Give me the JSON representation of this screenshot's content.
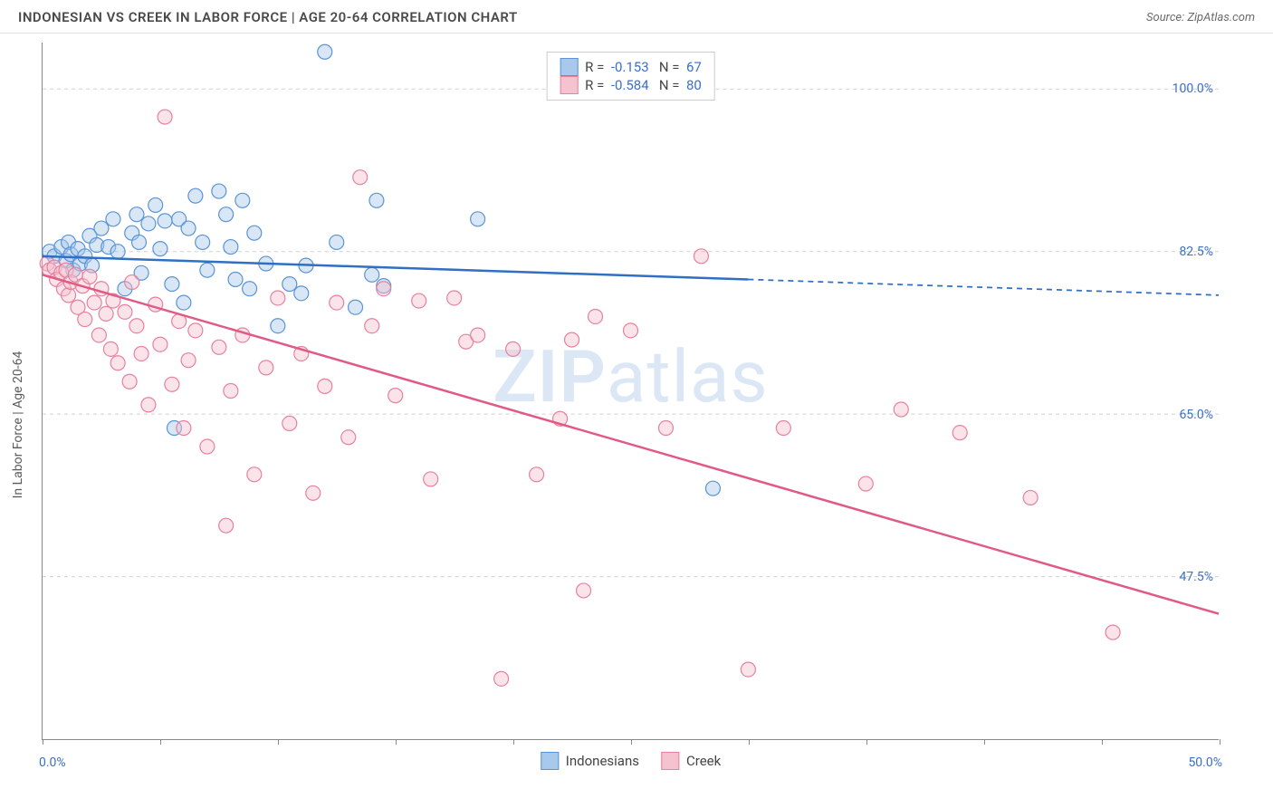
{
  "header": {
    "title": "INDONESIAN VS CREEK IN LABOR FORCE | AGE 20-64 CORRELATION CHART",
    "source_prefix": "Source: ",
    "source": "ZipAtlas.com"
  },
  "chart": {
    "type": "scatter",
    "ylabel": "In Labor Force | Age 20-64",
    "watermark": "ZIPatlas",
    "background_color": "#ffffff",
    "grid_color": "#d0d0d0",
    "axis_color": "#888888",
    "tick_label_color": "#3b6fc9",
    "xlim": [
      0,
      50
    ],
    "ylim": [
      30,
      105
    ],
    "xticks": [
      0,
      5,
      10,
      15,
      20,
      25,
      30,
      35,
      40,
      45,
      50
    ],
    "xtick_labels_shown": {
      "0": "0.0%",
      "50": "50.0%"
    },
    "yticks": [
      47.5,
      65.0,
      82.5,
      100.0
    ],
    "ytick_labels": [
      "47.5%",
      "65.0%",
      "82.5%",
      "100.0%"
    ],
    "marker_radius": 8,
    "marker_opacity": 0.45,
    "line_width": 2.5,
    "series": [
      {
        "name": "Indonesians",
        "color_fill": "#a8c8ec",
        "color_stroke": "#5a94d6",
        "line_color": "#2f6fc4",
        "R": "-0.153",
        "N": "67",
        "regression": {
          "x1": 0,
          "y1": 82.0,
          "x2_solid": 30,
          "y2_solid": 79.5,
          "x2_dash": 50,
          "y2_dash": 77.8
        },
        "points": [
          [
            0.3,
            82.5
          ],
          [
            0.5,
            82
          ],
          [
            0.8,
            83
          ],
          [
            1.0,
            81.5
          ],
          [
            1.1,
            83.5
          ],
          [
            1.2,
            82.2
          ],
          [
            1.3,
            80.5
          ],
          [
            1.5,
            82.8
          ],
          [
            1.6,
            81.2
          ],
          [
            1.8,
            82.0
          ],
          [
            2.0,
            84.2
          ],
          [
            2.1,
            81.0
          ],
          [
            2.3,
            83.2
          ],
          [
            2.5,
            85.0
          ],
          [
            2.8,
            83
          ],
          [
            3.0,
            86
          ],
          [
            3.2,
            82.5
          ],
          [
            3.5,
            78.5
          ],
          [
            3.8,
            84.5
          ],
          [
            4.0,
            86.5
          ],
          [
            4.1,
            83.5
          ],
          [
            4.2,
            80.2
          ],
          [
            4.5,
            85.5
          ],
          [
            4.8,
            87.5
          ],
          [
            5.0,
            82.8
          ],
          [
            5.2,
            85.8
          ],
          [
            5.5,
            79
          ],
          [
            5.6,
            63.5
          ],
          [
            5.8,
            86.0
          ],
          [
            6.0,
            77
          ],
          [
            6.2,
            85
          ],
          [
            6.5,
            88.5
          ],
          [
            6.8,
            83.5
          ],
          [
            7.0,
            80.5
          ],
          [
            7.5,
            89
          ],
          [
            7.8,
            86.5
          ],
          [
            8.0,
            83
          ],
          [
            8.2,
            79.5
          ],
          [
            8.5,
            88
          ],
          [
            8.8,
            78.5
          ],
          [
            9.0,
            84.5
          ],
          [
            9.5,
            81.2
          ],
          [
            10.0,
            74.5
          ],
          [
            10.5,
            79
          ],
          [
            11.0,
            78
          ],
          [
            11.2,
            81
          ],
          [
            12.0,
            104
          ],
          [
            12.5,
            83.5
          ],
          [
            13.3,
            76.5
          ],
          [
            14.0,
            80
          ],
          [
            14.2,
            88
          ],
          [
            14.5,
            78.8
          ],
          [
            18.5,
            86
          ],
          [
            28.5,
            57
          ]
        ]
      },
      {
        "name": "Creek",
        "color_fill": "#f5c2cf",
        "color_stroke": "#e8809e",
        "line_color": "#e05a85",
        "R": "-0.584",
        "N": "80",
        "regression": {
          "x1": 0,
          "y1": 80.0,
          "x2_solid": 50,
          "y2_solid": 43.5,
          "x2_dash": 50,
          "y2_dash": 43.5
        },
        "points": [
          [
            0.2,
            81.2
          ],
          [
            0.3,
            80.5
          ],
          [
            0.5,
            80.8
          ],
          [
            0.6,
            79.5
          ],
          [
            0.8,
            80.2
          ],
          [
            0.9,
            78.5
          ],
          [
            1.0,
            80.5
          ],
          [
            1.1,
            77.8
          ],
          [
            1.2,
            79.2
          ],
          [
            1.4,
            80.0
          ],
          [
            1.5,
            76.5
          ],
          [
            1.7,
            78.8
          ],
          [
            1.8,
            75.2
          ],
          [
            2.0,
            79.8
          ],
          [
            2.2,
            77.0
          ],
          [
            2.4,
            73.5
          ],
          [
            2.5,
            78.5
          ],
          [
            2.7,
            75.8
          ],
          [
            2.9,
            72.0
          ],
          [
            3.0,
            77.2
          ],
          [
            3.2,
            70.5
          ],
          [
            3.5,
            76.0
          ],
          [
            3.7,
            68.5
          ],
          [
            3.8,
            79.2
          ],
          [
            4.0,
            74.5
          ],
          [
            4.2,
            71.5
          ],
          [
            4.5,
            66.0
          ],
          [
            4.8,
            76.8
          ],
          [
            5.0,
            72.5
          ],
          [
            5.2,
            97.0
          ],
          [
            5.5,
            68.2
          ],
          [
            5.8,
            75.0
          ],
          [
            6.0,
            63.5
          ],
          [
            6.2,
            70.8
          ],
          [
            6.5,
            74.0
          ],
          [
            7.0,
            61.5
          ],
          [
            7.5,
            72.2
          ],
          [
            7.8,
            53.0
          ],
          [
            8.0,
            67.5
          ],
          [
            8.5,
            73.5
          ],
          [
            9.0,
            58.5
          ],
          [
            9.5,
            70.0
          ],
          [
            10.0,
            77.5
          ],
          [
            10.5,
            64.0
          ],
          [
            11.0,
            71.5
          ],
          [
            11.5,
            56.5
          ],
          [
            12.0,
            68.0
          ],
          [
            12.5,
            77.0
          ],
          [
            13.0,
            62.5
          ],
          [
            13.5,
            90.5
          ],
          [
            14.0,
            74.5
          ],
          [
            14.5,
            78.5
          ],
          [
            15.0,
            67.0
          ],
          [
            16.0,
            77.2
          ],
          [
            16.5,
            58.0
          ],
          [
            17.5,
            77.5
          ],
          [
            18.0,
            72.8
          ],
          [
            18.5,
            73.5
          ],
          [
            19.5,
            36.5
          ],
          [
            20.0,
            72.0
          ],
          [
            21.0,
            58.5
          ],
          [
            22.0,
            64.5
          ],
          [
            22.5,
            73.0
          ],
          [
            23.0,
            46.0
          ],
          [
            23.5,
            75.5
          ],
          [
            25.0,
            74.0
          ],
          [
            26.5,
            63.5
          ],
          [
            28.0,
            82.0
          ],
          [
            30.0,
            37.5
          ],
          [
            31.5,
            63.5
          ],
          [
            35.0,
            57.5
          ],
          [
            36.5,
            65.5
          ],
          [
            39.0,
            63.0
          ],
          [
            42.0,
            56.0
          ],
          [
            45.5,
            41.5
          ]
        ]
      }
    ],
    "legend_labels": {
      "R": "R =",
      "N": "N ="
    }
  }
}
